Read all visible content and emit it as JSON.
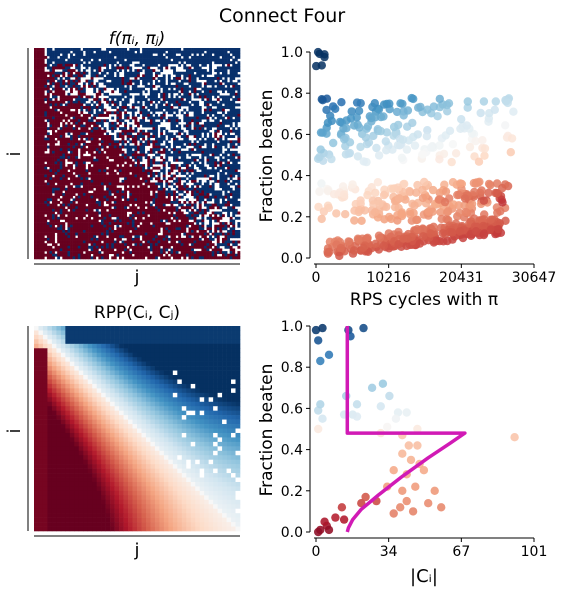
{
  "figure_title": "Connect Four",
  "chart_data": [
    {
      "type": "heatmap",
      "title": "f(πᵢ, πⱼ)",
      "xlabel": "j",
      "ylabel": "i",
      "colors": {
        "win": "#08306b",
        "loss": "#67001f",
        "tie": "#ffffff"
      },
      "pattern": "Matrix of pairwise outcomes; lower-left mostly losses (dark red), upper-right mostly wins (dark blue), white noise in between."
    },
    {
      "type": "scatter",
      "xlabel": "RPS cycles with π",
      "ylabel": "Fraction beaten",
      "xlim": [
        0,
        30647
      ],
      "ylim": [
        0,
        1.0
      ],
      "xticks": [
        "0",
        "10216",
        "20431",
        "30647"
      ],
      "yticks": [
        "0.0",
        "0.2",
        "0.4",
        "0.6",
        "0.8",
        "1.0"
      ],
      "colormap": "RdBu",
      "series": [
        {
          "cluster": "top",
          "x_range": [
            0,
            1500
          ],
          "y_range": [
            0.93,
            1.0
          ],
          "n": 6
        },
        {
          "cluster": "upper",
          "x_range": [
            0,
            28000
          ],
          "y_range": [
            0.46,
            0.78
          ],
          "n": 180
        },
        {
          "cluster": "middle",
          "x_range": [
            0,
            27000
          ],
          "y_range": [
            0.18,
            0.37
          ],
          "n": 200
        },
        {
          "cluster": "lower",
          "x_range": [
            1500,
            26000
          ],
          "y_range": [
            0.02,
            0.27
          ],
          "n": 230
        }
      ]
    },
    {
      "type": "heatmap",
      "title": "RPP(Cᵢ, Cⱼ)",
      "xlabel": "j",
      "ylabel": "i",
      "colormap": "RdBu",
      "pattern": "Antisymmetric: lower-left dark red, upper-right dark blue, diagonal band from pale to saturated."
    },
    {
      "type": "scatter",
      "xlabel": "|Cᵢ|",
      "ylabel": "Fraction beaten",
      "xlim": [
        0,
        101
      ],
      "ylim": [
        0,
        1.0
      ],
      "xticks": [
        "0",
        "34",
        "67",
        "101"
      ],
      "yticks": [
        "0.0",
        "0.2",
        "0.4",
        "0.6",
        "0.8",
        "1.0"
      ],
      "colormap": "RdBu",
      "points": [
        [
          0,
          0.98
        ],
        [
          1,
          0.93
        ],
        [
          2,
          0.83
        ],
        [
          3,
          0.99
        ],
        [
          6,
          0.86
        ],
        [
          15,
          0.98
        ],
        [
          16,
          0.95
        ],
        [
          22,
          0.99
        ],
        [
          1,
          0.59
        ],
        [
          1,
          0.5
        ],
        [
          2,
          0.62
        ],
        [
          3,
          0.55
        ],
        [
          14,
          0.66
        ],
        [
          19,
          0.62
        ],
        [
          26,
          0.7
        ],
        [
          31,
          0.72
        ],
        [
          34,
          0.66
        ],
        [
          13,
          0.57
        ],
        [
          17,
          0.57
        ],
        [
          19,
          0.56
        ],
        [
          30,
          0.61
        ],
        [
          38,
          0.58
        ],
        [
          42,
          0.58
        ],
        [
          30,
          0.48
        ],
        [
          33,
          0.51
        ],
        [
          37,
          0.55
        ],
        [
          40,
          0.47
        ],
        [
          47,
          0.5
        ],
        [
          92,
          0.46
        ],
        [
          43,
          0.42
        ],
        [
          47,
          0.42
        ],
        [
          40,
          0.38
        ],
        [
          44,
          0.35
        ],
        [
          48,
          0.33
        ],
        [
          36,
          0.3
        ],
        [
          42,
          0.28
        ],
        [
          50,
          0.3
        ],
        [
          33,
          0.22
        ],
        [
          40,
          0.2
        ],
        [
          46,
          0.22
        ],
        [
          55,
          0.2
        ],
        [
          42,
          0.15
        ],
        [
          39,
          0.12
        ],
        [
          45,
          0.1
        ],
        [
          21,
          0.14
        ],
        [
          23,
          0.17
        ],
        [
          12,
          0.12
        ],
        [
          13,
          0.06
        ],
        [
          9,
          0.07
        ],
        [
          5,
          0.03
        ],
        [
          6,
          0.01
        ],
        [
          2,
          0.01
        ],
        [
          1,
          0.0
        ],
        [
          4,
          0.05
        ],
        [
          28,
          0.15
        ],
        [
          36,
          0.09
        ],
        [
          52,
          0.14
        ],
        [
          58,
          0.12
        ]
      ],
      "curve_color": "#d11ab5",
      "curve": {
        "upper": [
          [
            14.5,
            1.0
          ],
          [
            14.5,
            0.48
          ],
          [
            69,
            0.48
          ]
        ],
        "lower": [
          [
            69,
            0.48
          ],
          [
            62,
            0.43
          ],
          [
            52,
            0.36
          ],
          [
            40,
            0.27
          ],
          [
            29,
            0.18
          ],
          [
            21,
            0.11
          ],
          [
            17,
            0.06
          ],
          [
            15,
            0.02
          ],
          [
            14.5,
            0.0
          ]
        ]
      }
    }
  ]
}
